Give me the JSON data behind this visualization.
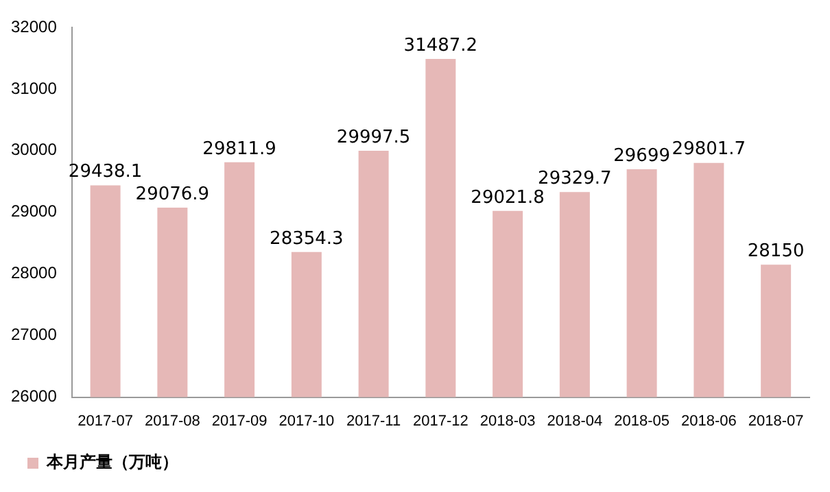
{
  "chart_data": {
    "type": "bar",
    "categories": [
      "2017-07",
      "2017-08",
      "2017-09",
      "2017-10",
      "2017-11",
      "2017-12",
      "2018-03",
      "2018-04",
      "2018-05",
      "2018-06",
      "2018-07"
    ],
    "series": [
      {
        "name": "本月产量（万吨）",
        "color": "#e6b8b7",
        "values": [
          29438.1,
          29076.9,
          29811.9,
          28354.3,
          29997.5,
          31487.2,
          29021.8,
          29329.7,
          29699,
          29801.7,
          28150
        ]
      }
    ],
    "ylim": [
      26000,
      32000
    ],
    "yticks": [
      26000,
      27000,
      28000,
      29000,
      30000,
      31000,
      32000
    ],
    "grid": false,
    "legend": "bottom",
    "data_labels": true
  }
}
